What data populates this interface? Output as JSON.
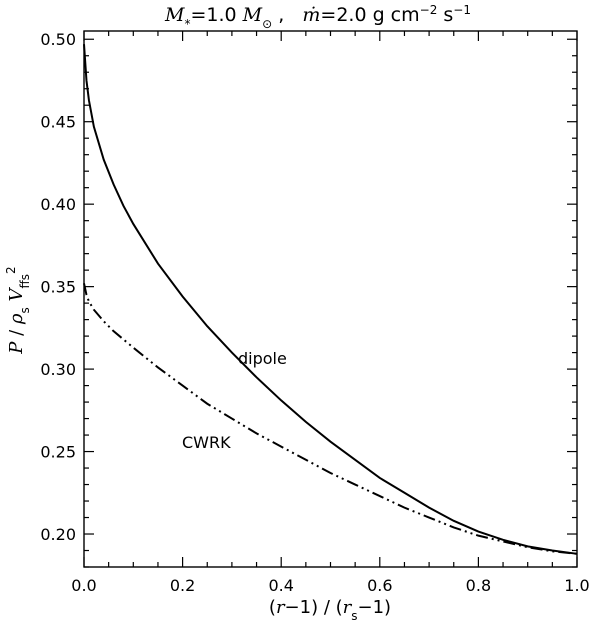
{
  "chart_data": {
    "type": "line",
    "title": {
      "m_star_sym": "M",
      "m_star_sub": "*",
      "m_star_eq": "=1.0 ",
      "m_sun_sym": "M",
      "m_sun_sub": "⊙",
      "sep": " ,   ",
      "mdot_sym": "ṁ",
      "mdot_eq": "=2.0 g cm",
      "exp1": "−2",
      "mid": " s",
      "exp2": "−1"
    },
    "xlabel": "(r−1) / (rs−1)",
    "ylabel": "P / ρs Vffs²",
    "xlim": [
      0.0,
      1.0
    ],
    "ylim": [
      0.18,
      0.505
    ],
    "xticks": [
      "0.0",
      "0.2",
      "0.4",
      "0.6",
      "0.8",
      "1.0"
    ],
    "yticks": [
      "0.20",
      "0.25",
      "0.30",
      "0.35",
      "0.40",
      "0.45",
      "0.50"
    ],
    "annotations": [
      "dipole",
      "CWRK"
    ],
    "series": [
      {
        "name": "dipole",
        "style": "solid",
        "x": [
          0.0,
          0.005,
          0.01,
          0.02,
          0.04,
          0.06,
          0.08,
          0.1,
          0.15,
          0.2,
          0.25,
          0.3,
          0.35,
          0.4,
          0.45,
          0.5,
          0.55,
          0.6,
          0.65,
          0.7,
          0.75,
          0.8,
          0.85,
          0.9,
          0.95,
          1.0
        ],
        "y": [
          0.497,
          0.475,
          0.463,
          0.447,
          0.427,
          0.412,
          0.399,
          0.388,
          0.364,
          0.344,
          0.326,
          0.31,
          0.295,
          0.281,
          0.268,
          0.256,
          0.245,
          0.234,
          0.225,
          0.216,
          0.208,
          0.2015,
          0.1965,
          0.1925,
          0.19,
          0.188
        ]
      },
      {
        "name": "CWRK",
        "style": "dash-dot-dot",
        "x": [
          0.0,
          0.005,
          0.01,
          0.02,
          0.04,
          0.06,
          0.08,
          0.1,
          0.15,
          0.2,
          0.25,
          0.3,
          0.35,
          0.4,
          0.45,
          0.5,
          0.55,
          0.6,
          0.65,
          0.7,
          0.75,
          0.8,
          0.85,
          0.9,
          0.95,
          1.0
        ],
        "y": [
          0.352,
          0.345,
          0.341,
          0.336,
          0.329,
          0.323,
          0.318,
          0.313,
          0.301,
          0.29,
          0.279,
          0.27,
          0.261,
          0.253,
          0.245,
          0.237,
          0.23,
          0.223,
          0.216,
          0.21,
          0.204,
          0.199,
          0.1955,
          0.192,
          0.1895,
          0.188
        ]
      }
    ]
  }
}
